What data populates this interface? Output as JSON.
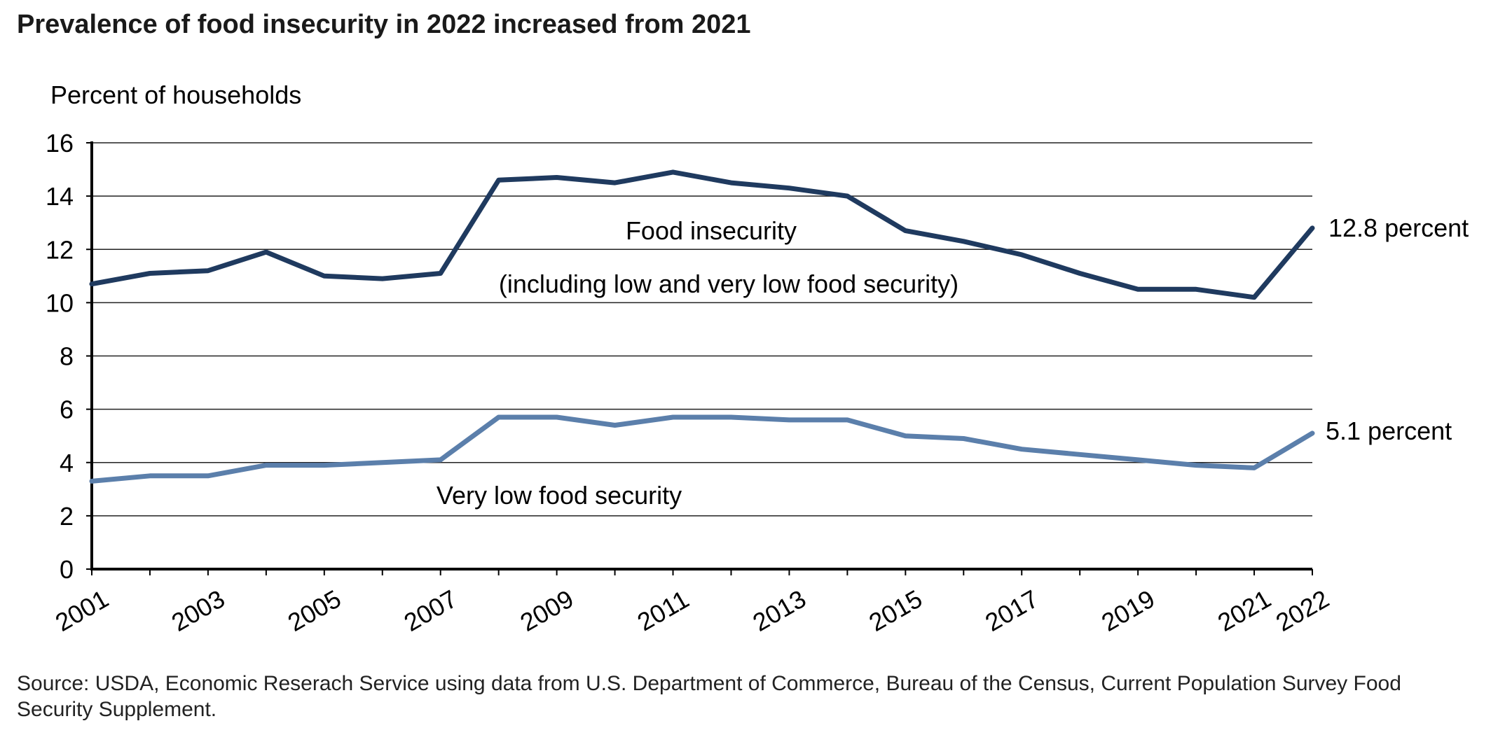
{
  "title": "Prevalence of food insecurity in 2022 increased from 2021",
  "source": "Source: USDA, Economic Reserach Service using data from U.S. Department of Commerce, Bureau of the Census, Current Population Survey Food Security Supplement.",
  "chart_data": {
    "type": "line",
    "title": "Prevalence of food insecurity in 2022 increased from 2021",
    "ylabel": "Percent of households",
    "xlabel": "",
    "ylim": [
      0,
      16
    ],
    "yticks": [
      0,
      2,
      4,
      6,
      8,
      10,
      12,
      14,
      16
    ],
    "grid": true,
    "legend": "none",
    "x": [
      2001,
      2002,
      2003,
      2004,
      2005,
      2006,
      2007,
      2008,
      2009,
      2010,
      2011,
      2012,
      2013,
      2014,
      2015,
      2016,
      2017,
      2018,
      2019,
      2020,
      2021,
      2022
    ],
    "xticklabels": [
      "2001",
      "2003",
      "2005",
      "2007",
      "2009",
      "2011",
      "2013",
      "2015",
      "2017",
      "2019",
      "2021",
      "2022"
    ],
    "series": [
      {
        "color": "#1f3a5f",
        "values": [
          10.7,
          11.1,
          11.2,
          11.9,
          11.0,
          10.9,
          11.1,
          14.6,
          14.7,
          14.5,
          14.9,
          14.5,
          14.3,
          14.0,
          12.7,
          12.3,
          11.8,
          11.1,
          10.5,
          10.5,
          10.2,
          12.8
        ]
      },
      {
        "color": "#5b7fab",
        "values": [
          3.3,
          3.5,
          3.5,
          3.9,
          3.9,
          4.0,
          4.1,
          5.7,
          5.7,
          5.4,
          5.7,
          5.7,
          5.6,
          5.6,
          5.0,
          4.9,
          4.5,
          4.3,
          4.1,
          3.9,
          3.8,
          5.1
        ]
      }
    ],
    "annotations": {
      "food_insecurity_line1": "Food insecurity",
      "food_insecurity_line2": "(including low and very low food security)",
      "very_low": "Very low food security",
      "end_label_food_insecurity": "12.8 percent",
      "end_label_very_low": "5.1  percent"
    }
  }
}
